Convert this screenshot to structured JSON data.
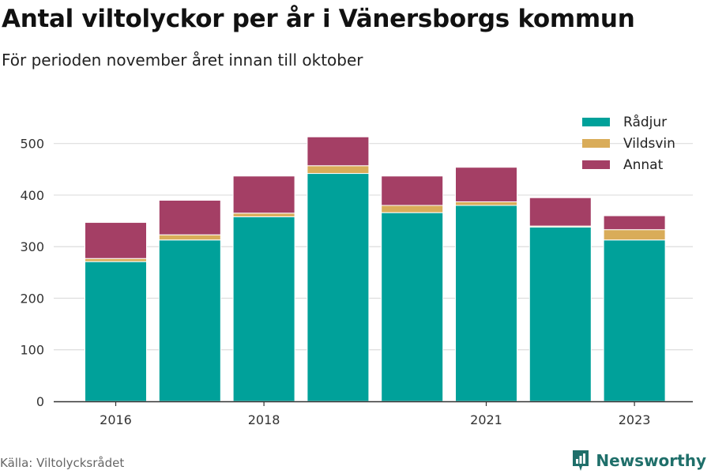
{
  "title": "Antal viltolyckor per år i Vänersborgs kommun",
  "subtitle": "För perioden november året innan till oktober",
  "source": "Källa: Viltolycksrådet",
  "brand": "Newsworthy",
  "colors": {
    "radjur": "#00a19a",
    "vildsvin": "#d9ac59",
    "annat": "#a43f65",
    "grid": "#dddddd",
    "axis": "#333333",
    "brand": "#1f6f6a"
  },
  "chart_data": {
    "type": "bar",
    "stacked": true,
    "categories": [
      2016,
      2017,
      2018,
      2019,
      2020,
      2021,
      2022,
      2023
    ],
    "x_tick_labels": [
      "2016",
      "2018",
      "2021",
      "2023"
    ],
    "x_tick_values": [
      2016,
      2018,
      2021,
      2023
    ],
    "y_ticks": [
      0,
      100,
      200,
      300,
      400,
      500
    ],
    "ylim": [
      0,
      550
    ],
    "grid": true,
    "legend_position": "top-right",
    "series": [
      {
        "name": "Rådjur",
        "key": "radjur",
        "values": [
          271,
          313,
          358,
          442,
          366,
          380,
          338,
          313
        ]
      },
      {
        "name": "Vildsvin",
        "key": "vildsvin",
        "values": [
          6,
          10,
          7,
          15,
          14,
          7,
          2,
          20
        ]
      },
      {
        "name": "Annat",
        "key": "annat",
        "values": [
          70,
          67,
          72,
          56,
          57,
          67,
          55,
          27
        ]
      }
    ]
  }
}
